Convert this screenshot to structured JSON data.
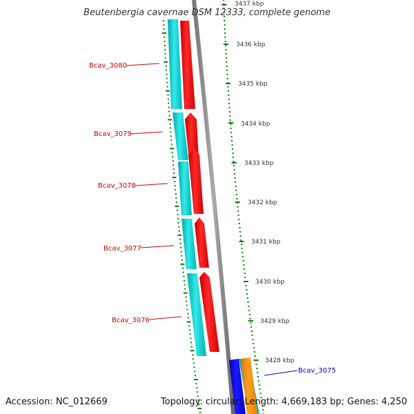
{
  "title": "Beutenbergia cavernae DSM 12333, complete genome",
  "footer": {
    "accession": "Accession: NC_012669",
    "summary": "Topology: circular; Length: 4,669,183 bp; Genes: 4,250"
  },
  "scale": {
    "ticks": [
      "3437 kbp",
      "3436 kbp",
      "3435 kbp",
      "3434 kbp",
      "3433 kbp",
      "3432 kbp",
      "3431 kbp",
      "3430 kbp",
      "3429 kbp",
      "3428 kbp"
    ]
  },
  "genes": [
    {
      "label": "Bcav_3080",
      "color": "#cc0000",
      "strand": "forward"
    },
    {
      "label": "Bcav_3079",
      "color": "#cc0000",
      "strand": "forward"
    },
    {
      "label": "Bcav_3078",
      "color": "#cc0000",
      "strand": "forward"
    },
    {
      "label": "Bcav_3077",
      "color": "#cc0000",
      "strand": "forward"
    },
    {
      "label": "Bcav_3076",
      "color": "#cc0000",
      "strand": "forward"
    },
    {
      "label": "Bcav_3075",
      "color": "#0000cc",
      "strand": "reverse"
    }
  ],
  "colors": {
    "cds": "#ff0000",
    "cds_reverse": "#0000ff",
    "gene_track": "#00cccc",
    "orange_track": "#ff8c00",
    "backbone": "#888888",
    "gc_skew": "#008000"
  }
}
